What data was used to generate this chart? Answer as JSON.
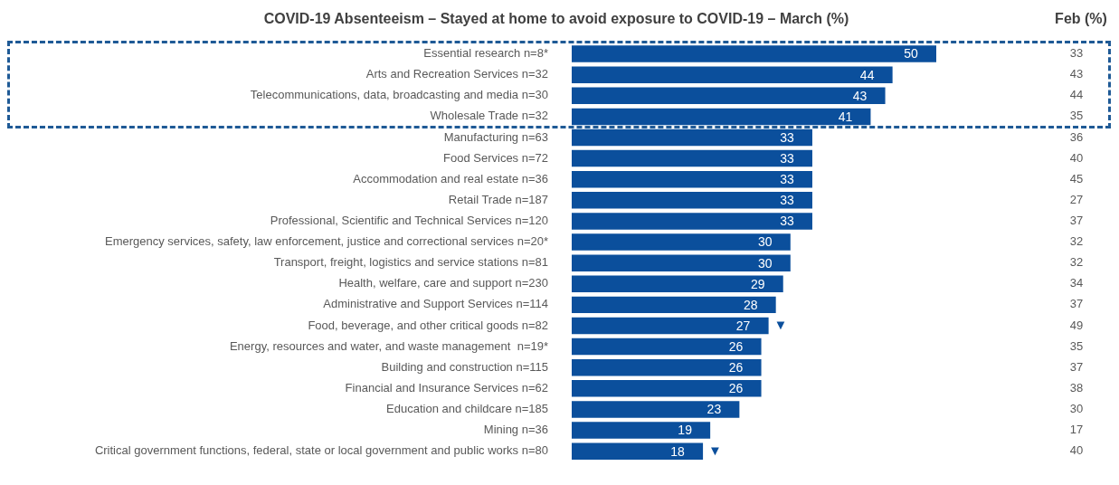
{
  "chart_data": {
    "type": "bar",
    "orientation": "horizontal",
    "title": "COVID-19 Absenteeism – Stayed at home to avoid exposure to COVID-19 – March (%)",
    "categories": [
      "Essential research n=8*",
      "Arts and Recreation Services n=32",
      "Telecommunications, data, broadcasting and media n=30",
      "Wholesale Trade n=32",
      "Manufacturing n=63",
      "Food Services n=72",
      "Accommodation and real estate n=36",
      "Retail Trade n=187",
      "Professional, Scientific and Technical Services n=120",
      "Emergency services, safety, law enforcement, justice and correctional services n=20*",
      "Transport, freight, logistics and service stations n=81",
      "Health, welfare, care and support n=230",
      "Administrative and Support Services n=114",
      "Food, beverage, and other critical goods n=82",
      "Energy, resources and water, and waste management  n=19*",
      "Building and construction n=115",
      "Financial and Insurance Services n=62",
      "Education and childcare n=185",
      "Mining n=36",
      "Critical government functions, federal, state or local government and public works n=80"
    ],
    "values": [
      50,
      44,
      43,
      41,
      33,
      33,
      33,
      33,
      33,
      30,
      30,
      29,
      28,
      27,
      26,
      26,
      26,
      23,
      19,
      18
    ],
    "color": "#0b4f9c",
    "data_labels": true,
    "xlim": [
      0,
      50
    ],
    "legend": false,
    "annotations": [
      "Feb (%)",
      "33",
      "43",
      "44",
      "35",
      "36",
      "40",
      "45",
      "27",
      "37",
      "32",
      "32",
      "34",
      "37",
      "49",
      "35",
      "37",
      "38",
      "30",
      "17",
      "40",
      {
        "text": "▼",
        "x": 27,
        "y": "Food, beverage, and other critical goods n=82"
      },
      {
        "text": "▼",
        "x": 18,
        "y": "Critical government functions, federal, state or local government and public works n=80"
      }
    ]
  }
}
